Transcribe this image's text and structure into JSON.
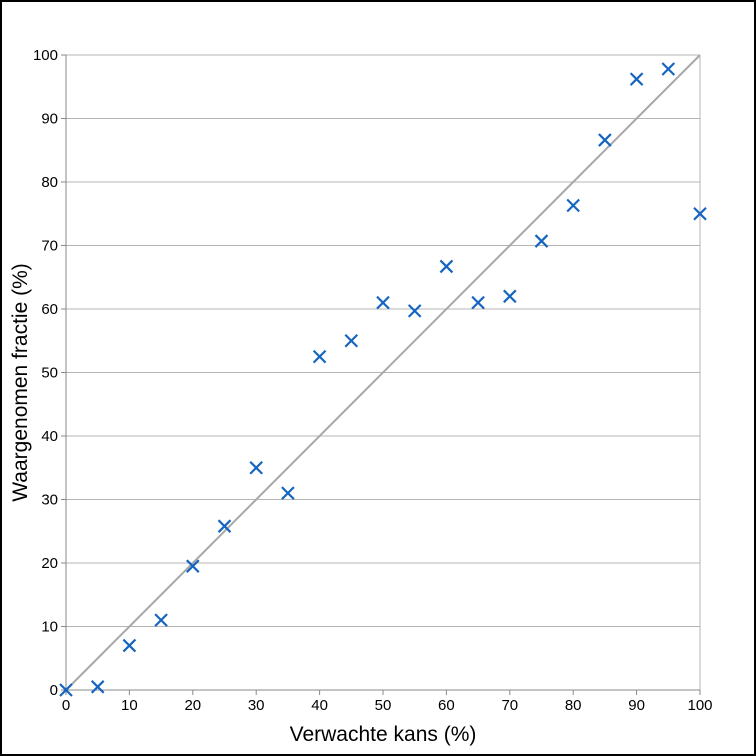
{
  "chart_data": {
    "type": "scatter",
    "title": "",
    "xlabel": "Verwachte kans (%)",
    "ylabel": "Waargenomen fractie (%)",
    "xlim": [
      0,
      100
    ],
    "ylim": [
      0,
      100
    ],
    "xticks": [
      "0",
      "10",
      "20",
      "30",
      "40",
      "50",
      "60",
      "70",
      "80",
      "90",
      "100"
    ],
    "yticks": [
      "0",
      "10",
      "20",
      "30",
      "40",
      "50",
      "60",
      "70",
      "80",
      "90",
      "100"
    ],
    "grid": "horizontal",
    "marker": "x",
    "series": [
      {
        "points": [
          [
            0,
            0
          ],
          [
            5,
            0.5
          ],
          [
            10,
            7
          ],
          [
            15,
            11
          ],
          [
            20,
            19.5
          ],
          [
            25,
            25.8
          ],
          [
            30,
            35
          ],
          [
            35,
            31
          ],
          [
            40,
            52.5
          ],
          [
            45,
            55
          ],
          [
            50,
            61
          ],
          [
            55,
            59.7
          ],
          [
            60,
            66.7
          ],
          [
            65,
            61
          ],
          [
            70,
            62
          ],
          [
            75,
            70.7
          ],
          [
            80,
            76.3
          ],
          [
            85,
            86.6
          ],
          [
            90,
            96.2
          ],
          [
            95,
            97.8
          ],
          [
            100,
            75
          ]
        ]
      }
    ],
    "reference_line": {
      "from": [
        0,
        0
      ],
      "to": [
        100,
        100
      ]
    },
    "colors": {
      "marker": "#1565c0",
      "reference_line": "#a8a8a8",
      "grid": "#b4b4b4",
      "axis": "#888888"
    }
  }
}
